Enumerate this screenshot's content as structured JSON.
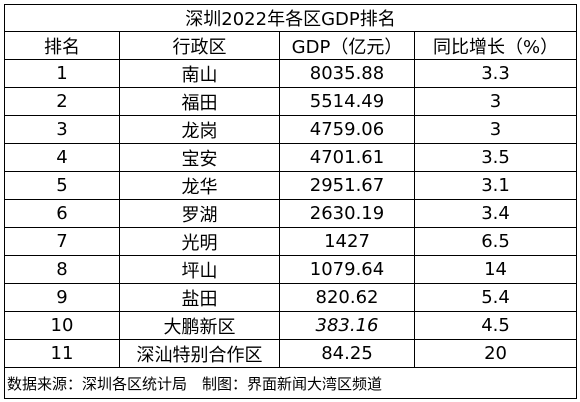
{
  "title": "深圳2022年各区GDP排名",
  "headers": [
    "排名",
    "行政区",
    "GDP（亿元）",
    "同比增长（%）"
  ],
  "rows": [
    {
      "rank": "1",
      "district": "南山",
      "gdp": "8035.88",
      "growth": "3.3"
    },
    {
      "rank": "2",
      "district": "福田",
      "gdp": "5514.49",
      "growth": "3"
    },
    {
      "rank": "3",
      "district": "龙岗",
      "gdp": "4759.06",
      "growth": "3"
    },
    {
      "rank": "4",
      "district": "宝安",
      "gdp": "4701.61",
      "growth": "3.5"
    },
    {
      "rank": "5",
      "district": "龙华",
      "gdp": "2951.67",
      "growth": "3.1"
    },
    {
      "rank": "6",
      "district": "罗湖",
      "gdp": "2630.19",
      "growth": "3.4"
    },
    {
      "rank": "7",
      "district": "光明",
      "gdp": "1427",
      "growth": "6.5"
    },
    {
      "rank": "8",
      "district": "坪山",
      "gdp": "1079.64",
      "growth": "14"
    },
    {
      "rank": "9",
      "district": "盐田",
      "gdp": "820.62",
      "growth": "5.4"
    },
    {
      "rank": "10",
      "district": "大鹏新区",
      "gdp": "383.16",
      "growth": "4.5"
    },
    {
      "rank": "11",
      "district": "深汕特别合作区",
      "gdp": "84.25",
      "growth": "20"
    }
  ],
  "footer": "数据来源：深圳各区统计局　制图：界面新闻大湾区频道"
}
